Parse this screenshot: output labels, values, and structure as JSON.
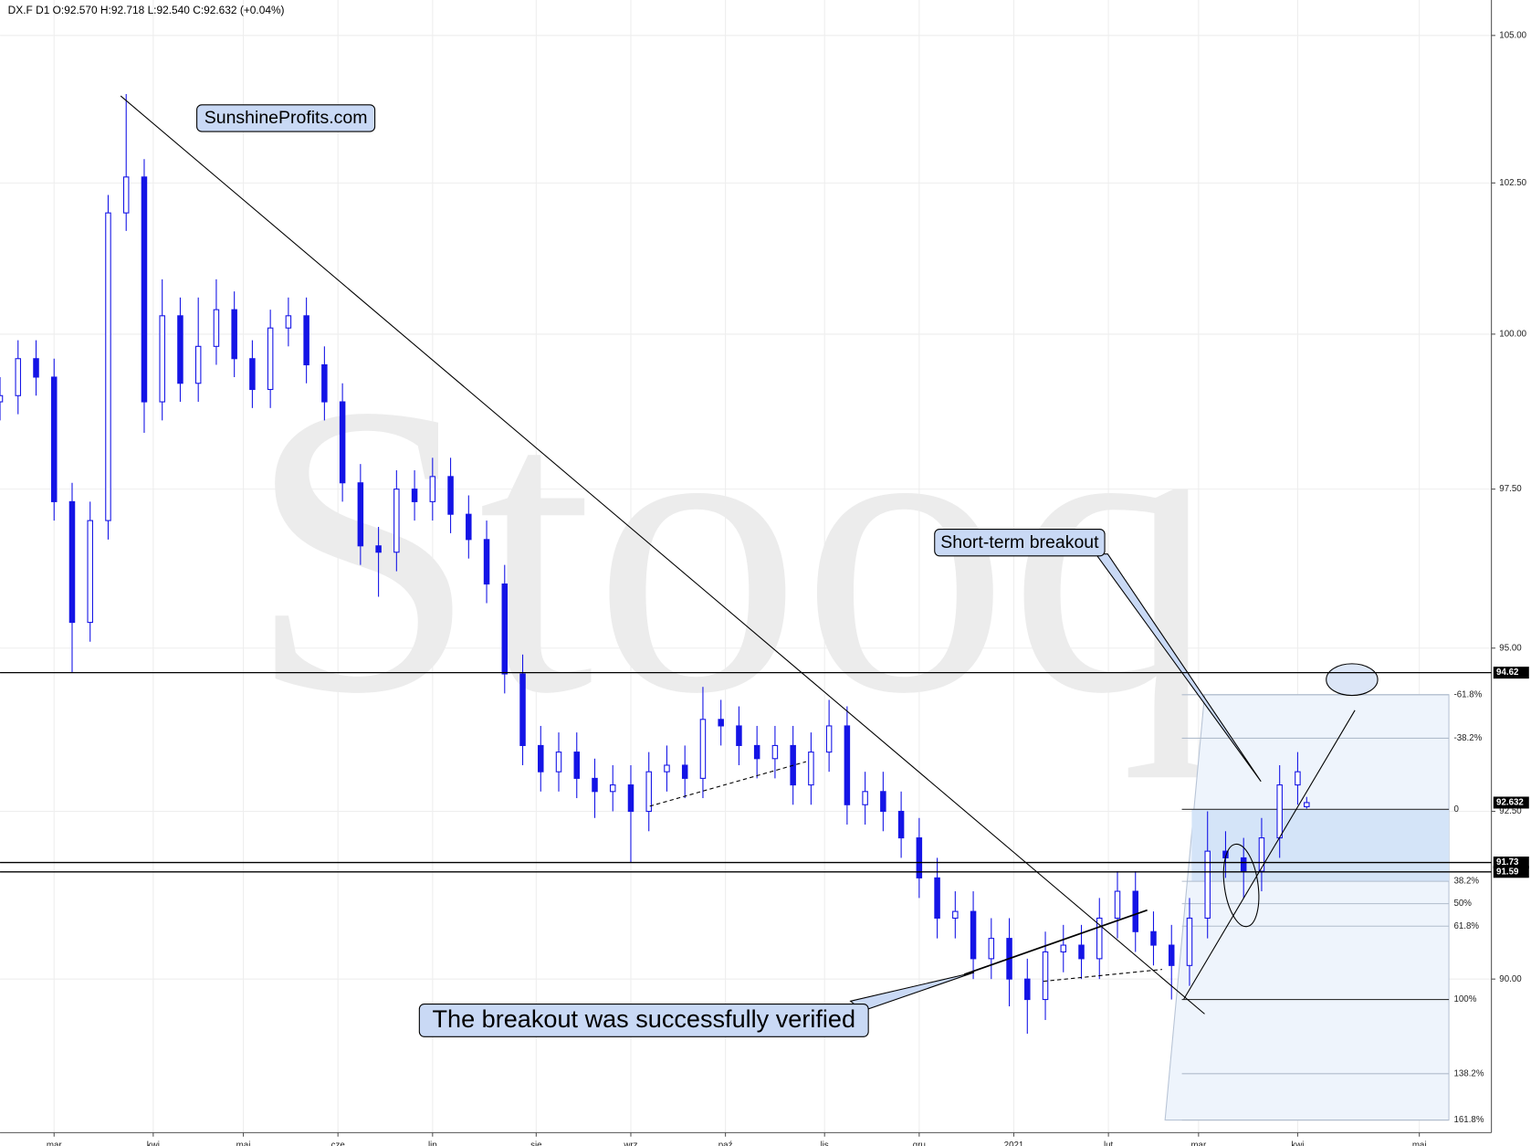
{
  "chart_data": {
    "type": "candlestick",
    "title": "DX.F  D1  O:92.570  H:92.718  L:92.540  C:92.632  (+0.04%)",
    "watermark": "Stooq",
    "annotations": [
      "SunshineProfits.com",
      "Short-term breakout",
      "The breakout was successfully verified"
    ],
    "log_scale": true,
    "grid": true,
    "color": "#1414e6",
    "xlim": [
      0,
      331
    ],
    "xticks": [
      {
        "value": 12,
        "label": "mar"
      },
      {
        "value": 34,
        "label": "kwi"
      },
      {
        "value": 54,
        "label": "maj"
      },
      {
        "value": 75,
        "label": "cze"
      },
      {
        "value": 96,
        "label": "lip"
      },
      {
        "value": 119,
        "label": "sie"
      },
      {
        "value": 140,
        "label": "wrz"
      },
      {
        "value": 161,
        "label": "paź"
      },
      {
        "value": 183,
        "label": "lis"
      },
      {
        "value": 204,
        "label": "gru"
      },
      {
        "value": 225,
        "label": "2021"
      },
      {
        "value": 246,
        "label": "lut"
      },
      {
        "value": 266,
        "label": "mar"
      },
      {
        "value": 288,
        "label": "kwi"
      },
      {
        "value": 315,
        "label": "maj"
      }
    ],
    "ylim": [
      87.77,
      105.61
    ],
    "yticks": [
      {
        "value": 90,
        "label": "90.00"
      },
      {
        "value": 92.5,
        "label": "92.50"
      },
      {
        "value": 95,
        "label": "95.00"
      },
      {
        "value": 97.5,
        "label": "97.50"
      },
      {
        "value": 100,
        "label": "100.00"
      },
      {
        "value": 102.5,
        "label": "102.50"
      },
      {
        "value": 105,
        "label": "105.00"
      }
    ],
    "levels": [
      94.62,
      91.73,
      91.59
    ],
    "fib": {
      "start": 92.53,
      "end": 89.7,
      "levels": [
        {
          "value": -61.8,
          "label": "-61.8%"
        },
        {
          "value": -38.2,
          "label": "-38.2%"
        },
        0,
        {
          "value": 38.2,
          "label": "38.2%"
        },
        {
          "value": 50,
          "label": "50%"
        },
        {
          "value": 61.8,
          "label": "61.8%"
        },
        {
          "value": 100,
          "label": "100%"
        },
        {
          "value": 138.2,
          "label": "138.2%"
        },
        {
          "value": 161.8,
          "label": "161.8%"
        }
      ]
    },
    "x": [
      0,
      4,
      8,
      12,
      16,
      20,
      24,
      28,
      32,
      36,
      40,
      44,
      48,
      52,
      56,
      60,
      64,
      68,
      72,
      76,
      80,
      84,
      88,
      92,
      96,
      100,
      104,
      108,
      112,
      116,
      120,
      124,
      128,
      132,
      136,
      140,
      144,
      148,
      152,
      156,
      160,
      164,
      168,
      172,
      176,
      180,
      184,
      188,
      192,
      196,
      200,
      204,
      208,
      212,
      216,
      220,
      224,
      228,
      232,
      236,
      240,
      244,
      248,
      252,
      256,
      260,
      264,
      268,
      272,
      276,
      280,
      284,
      288,
      290
    ],
    "open": [
      98.9,
      99.0,
      99.6,
      99.3,
      97.3,
      95.4,
      97.0,
      102.0,
      102.6,
      98.9,
      100.3,
      99.2,
      99.8,
      100.4,
      99.6,
      99.1,
      100.1,
      100.3,
      99.5,
      98.9,
      97.6,
      96.6,
      96.5,
      97.5,
      97.3,
      97.7,
      97.1,
      96.7,
      96.0,
      94.6,
      93.5,
      93.1,
      93.4,
      93.0,
      92.8,
      92.9,
      92.5,
      93.1,
      93.2,
      93.0,
      93.9,
      93.8,
      93.5,
      93.3,
      93.5,
      92.9,
      93.4,
      93.8,
      92.6,
      92.8,
      92.5,
      92.1,
      91.5,
      90.9,
      91.0,
      90.3,
      90.6,
      90.0,
      89.7,
      90.4,
      90.5,
      90.3,
      90.9,
      91.3,
      90.7,
      90.5,
      90.2,
      90.9,
      91.9,
      91.8,
      91.6,
      92.1,
      92.9,
      92.57
    ],
    "high": [
      99.3,
      99.9,
      99.9,
      99.6,
      97.6,
      97.3,
      102.3,
      104.0,
      102.9,
      100.9,
      100.6,
      100.6,
      100.9,
      100.7,
      99.9,
      100.4,
      100.6,
      100.6,
      99.8,
      99.2,
      97.9,
      96.9,
      97.8,
      97.8,
      98.0,
      98.0,
      97.4,
      97.0,
      96.3,
      94.9,
      93.8,
      93.7,
      93.7,
      93.3,
      93.2,
      93.2,
      93.4,
      93.5,
      93.5,
      94.4,
      94.2,
      94.1,
      93.8,
      93.8,
      93.8,
      93.7,
      94.2,
      94.1,
      93.1,
      93.1,
      92.8,
      92.4,
      91.8,
      91.3,
      91.3,
      90.9,
      90.9,
      90.3,
      90.7,
      90.8,
      90.8,
      91.2,
      91.6,
      91.6,
      91.0,
      90.8,
      91.2,
      92.5,
      92.2,
      92.1,
      92.4,
      93.2,
      93.4,
      92.718
    ],
    "low": [
      98.6,
      98.7,
      99.0,
      97.0,
      94.62,
      95.1,
      96.7,
      101.7,
      98.4,
      98.6,
      98.9,
      98.9,
      99.5,
      99.3,
      98.8,
      98.8,
      99.8,
      99.2,
      98.6,
      97.3,
      96.3,
      95.8,
      96.2,
      97.0,
      97.0,
      96.8,
      96.4,
      95.7,
      94.3,
      93.2,
      92.8,
      92.8,
      92.7,
      92.4,
      92.5,
      91.73,
      92.2,
      92.8,
      92.7,
      92.7,
      93.5,
      93.2,
      93.0,
      93.0,
      92.6,
      92.6,
      93.1,
      92.3,
      92.3,
      92.2,
      91.8,
      91.2,
      90.6,
      90.6,
      90.0,
      90.0,
      89.6,
      89.2,
      89.4,
      90.1,
      90.0,
      90.0,
      90.6,
      90.4,
      90.2,
      89.7,
      89.9,
      90.6,
      91.5,
      91.2,
      91.3,
      91.8,
      92.6,
      92.54
    ],
    "close": [
      99.0,
      99.6,
      99.3,
      97.3,
      95.4,
      97.0,
      102.0,
      102.6,
      98.9,
      100.3,
      99.2,
      99.8,
      100.4,
      99.6,
      99.1,
      100.1,
      100.3,
      99.5,
      98.9,
      97.6,
      96.6,
      96.5,
      97.5,
      97.3,
      97.7,
      97.1,
      96.7,
      96.0,
      94.6,
      93.5,
      93.1,
      93.4,
      93.0,
      92.8,
      92.9,
      92.5,
      93.1,
      93.2,
      93.0,
      93.9,
      93.8,
      93.5,
      93.3,
      93.5,
      92.9,
      93.4,
      93.8,
      92.6,
      92.8,
      92.5,
      92.1,
      91.5,
      90.9,
      91.0,
      90.3,
      90.6,
      90.0,
      89.7,
      90.4,
      90.5,
      90.3,
      90.9,
      91.3,
      90.7,
      90.5,
      90.2,
      90.9,
      91.9,
      91.8,
      91.6,
      92.1,
      92.9,
      93.1,
      92.632
    ]
  }
}
